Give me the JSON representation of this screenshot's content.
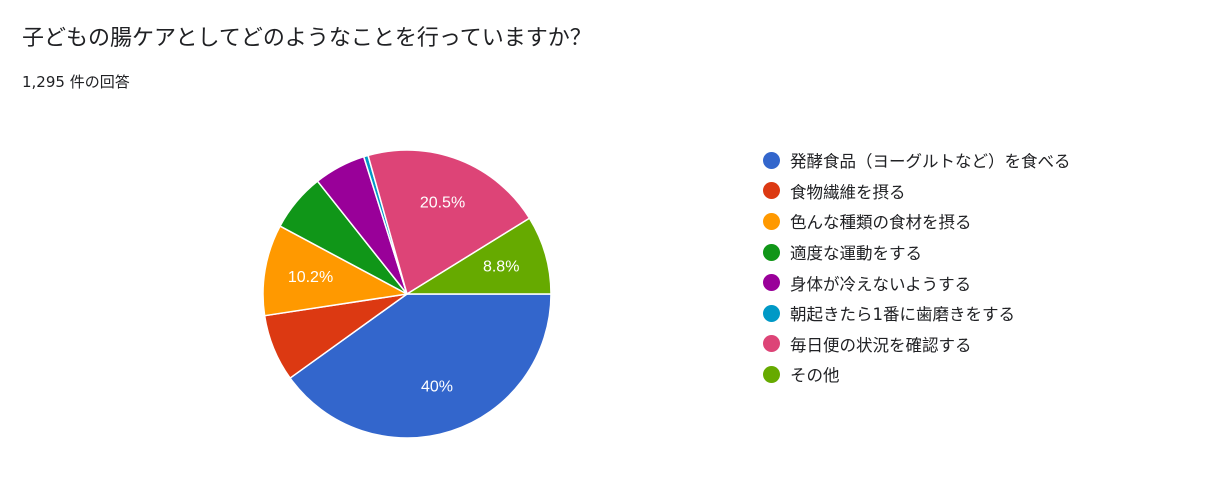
{
  "title": "子どもの腸ケアとしてどのようなことを行っていますか？",
  "response_count": "1,295 件の回答",
  "chart_data": {
    "type": "pie",
    "title": "子どもの腸ケアとしてどのようなことを行っていますか？",
    "start": "3 o'clock, clockwise",
    "categories": [
      "発酵食品（ヨーグルトなど）を食べる",
      "食物繊維を摂る",
      "色んな種類の食材を摂る",
      "適度な運動をする",
      "身体が冷えないようする",
      "朝起きたら1番に歯磨きをする",
      "毎日便の状況を確認する",
      "その他"
    ],
    "values": [
      40.0,
      7.5,
      10.2,
      6.5,
      5.8,
      0.5,
      20.5,
      8.8
    ],
    "data_labels": [
      "40%",
      "",
      "10.2%",
      "",
      "",
      "",
      "20.5%",
      "8.8%"
    ],
    "colors": [
      "#3366cc",
      "#dc3912",
      "#ff9900",
      "#109618",
      "#990099",
      "#0099c6",
      "#dd4477",
      "#66aa00"
    ],
    "legend_position": "right"
  }
}
